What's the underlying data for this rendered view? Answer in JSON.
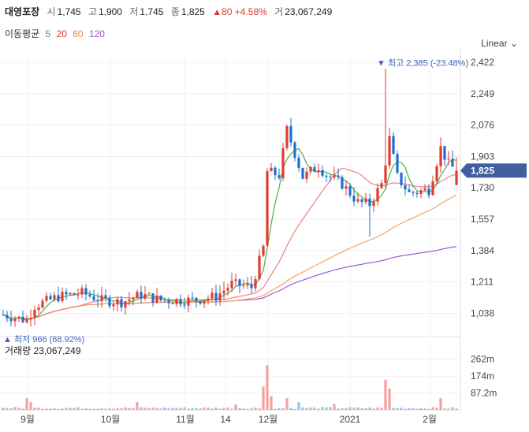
{
  "header": {
    "name": "대영포장",
    "open_label": "시",
    "open": "1,745",
    "high_label": "고",
    "high": "1,900",
    "low_label": "저",
    "low": "1,745",
    "close_label": "종",
    "close": "1,825",
    "change": "▲80 +4.58%",
    "volume_label": "거",
    "volume": "23,067,249"
  },
  "ma_legend": {
    "label": "이동평균",
    "p5": "5",
    "p20": "20",
    "p60": "60",
    "p120": "120"
  },
  "scale_button": "Linear",
  "colors": {
    "up": "#e03c31",
    "down": "#1f6fd1",
    "ma5": "#4caf50",
    "ma20": "#f08080",
    "ma60": "#f4a460",
    "ma120": "#9b59d6",
    "price_tag": "#3f5fa0"
  },
  "chart_data": {
    "type": "candlestick",
    "y_ticks": [
      "2,422",
      "2,249",
      "2,076",
      "1,903",
      "1,730",
      "1,557",
      "1,384",
      "1,211",
      "1,038"
    ],
    "y_range": [
      940,
      2470
    ],
    "current_price_label": "1,825",
    "current_price": 1825,
    "max_annotation": "최고 2,385 (-23.48%)",
    "max_value": 2385,
    "min_annotation": "최저 966 (88.92%)",
    "min_value": 966,
    "x_labels": [
      "9월",
      "10월",
      "11월",
      "14",
      "12월",
      "2021",
      "2월"
    ],
    "volume": {
      "label": "거래량",
      "total": "23,067,249",
      "ticks": [
        "262m",
        "174m",
        "87.2m"
      ],
      "tick_values": [
        262,
        174,
        87.2
      ],
      "max": 300
    }
  }
}
